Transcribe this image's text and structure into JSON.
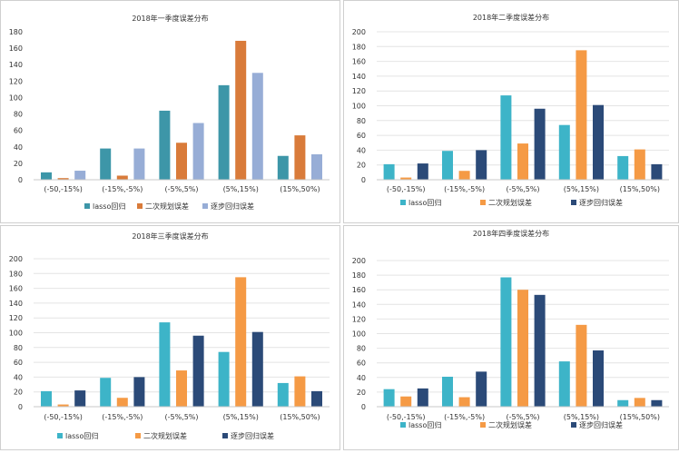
{
  "colors": {
    "lasso": "#3d9eb0",
    "planning": "#f59a45",
    "stepwise": "#2b4a78",
    "gridline": "#e4e4e4",
    "axis": "#c8c8c8",
    "text": "#333333"
  },
  "chart_data": [
    {
      "type": "bar",
      "title": "2018年一季度误差分布",
      "categories": [
        "(-50,-15%)",
        "(-15%,-5%)",
        "(-5%,5%)",
        "(5%,15%)",
        "(15%,50%)"
      ],
      "ylim": [
        0,
        180
      ],
      "yticks": [
        "0",
        "20",
        "40",
        "60",
        "80",
        "100",
        "120",
        "140",
        "160",
        "180"
      ],
      "grid": false,
      "legend_position": "bottom",
      "series": [
        {
          "name": "lasso回归",
          "color": "#3d96a8",
          "values": [
            9,
            38,
            84,
            115,
            29
          ]
        },
        {
          "name": "二次规划误差",
          "color": "#d97b3a",
          "values": [
            2,
            5,
            45,
            169,
            54
          ]
        },
        {
          "name": "逐步回归误差",
          "color": "#97add6",
          "values": [
            11,
            38,
            69,
            130,
            31
          ]
        }
      ]
    },
    {
      "type": "bar",
      "title": "2018年二季度误差分布",
      "categories": [
        "(-50,-15%)",
        "(-15%,-5%)",
        "(-5%,5%)",
        "(5%,15%)",
        "(15%,50%)"
      ],
      "ylim": [
        0,
        200
      ],
      "yticks": [
        "0",
        "20",
        "40",
        "60",
        "80",
        "100",
        "120",
        "140",
        "160",
        "180",
        "200"
      ],
      "grid": true,
      "legend_position": "bottom",
      "series": [
        {
          "name": "lasso回归",
          "color": "#3db4c8",
          "values": [
            21,
            39,
            114,
            74,
            32
          ]
        },
        {
          "name": "二次规划误差",
          "color": "#f59a45",
          "values": [
            3,
            12,
            49,
            175,
            41
          ]
        },
        {
          "name": "逐步回归误差",
          "color": "#2b4a78",
          "values": [
            22,
            40,
            96,
            101,
            21
          ]
        }
      ]
    },
    {
      "type": "bar",
      "title": "2018年三季度误差分布",
      "categories": [
        "(-50,-15%)",
        "(-15%,-5%)",
        "(-5%,5%)",
        "(5%,15%)",
        "(15%,50%)"
      ],
      "ylim": [
        0,
        200
      ],
      "yticks": [
        "0",
        "20",
        "40",
        "60",
        "80",
        "100",
        "120",
        "140",
        "160",
        "180",
        "200"
      ],
      "grid": true,
      "legend_position": "bottom",
      "series": [
        {
          "name": "lasso回归",
          "color": "#3db4c8",
          "values": [
            21,
            39,
            114,
            74,
            32
          ]
        },
        {
          "name": "二次规划误差",
          "color": "#f59a45",
          "values": [
            3,
            12,
            49,
            175,
            41
          ]
        },
        {
          "name": "逐步回归误差",
          "color": "#2b4a78",
          "values": [
            22,
            40,
            96,
            101,
            21
          ]
        }
      ]
    },
    {
      "type": "bar",
      "title": "2018年四季度误差分布",
      "categories": [
        "(-50,-15%)",
        "(-15%,-5%)",
        "(-5%,5%)",
        "(5%,15%)",
        "(15%,50%)"
      ],
      "ylim": [
        0,
        200
      ],
      "yticks": [
        "0",
        "20",
        "40",
        "60",
        "80",
        "100",
        "120",
        "140",
        "160",
        "180",
        "200"
      ],
      "grid": true,
      "legend_position": "bottom",
      "series": [
        {
          "name": "lasso回归",
          "color": "#3db4c8",
          "values": [
            24,
            41,
            177,
            62,
            9
          ]
        },
        {
          "name": "二次规划误差",
          "color": "#f59a45",
          "values": [
            14,
            13,
            160,
            112,
            12
          ]
        },
        {
          "name": "逐步回归误差",
          "color": "#2b4a78",
          "values": [
            25,
            48,
            153,
            77,
            9
          ]
        }
      ]
    }
  ]
}
